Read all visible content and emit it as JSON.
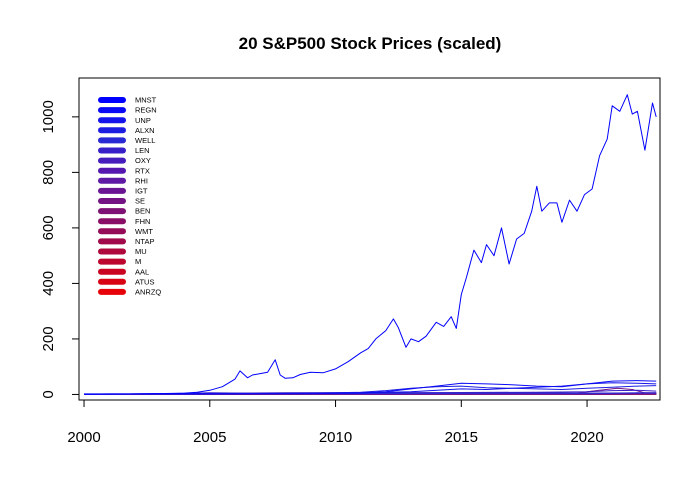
{
  "chart_data": {
    "type": "line",
    "title": "20 S&P500 Stock Prices (scaled)",
    "xlabel": "",
    "ylabel": "",
    "xlim": [
      1999.8,
      2022.9
    ],
    "ylim": [
      -20,
      1140
    ],
    "x_ticks": [
      2000,
      2005,
      2010,
      2015,
      2020
    ],
    "y_ticks": [
      0,
      200,
      400,
      600,
      800,
      1000
    ],
    "grid": false,
    "legend_position": "top-left",
    "series": [
      {
        "name": "MNST",
        "color": "#0000FF",
        "x": [
          2000,
          2001,
          2002,
          2003,
          2004,
          2004.5,
          2005,
          2005.5,
          2006,
          2006.2,
          2006.5,
          2006.7,
          2007,
          2007.3,
          2007.6,
          2007.8,
          2008,
          2008.3,
          2008.6,
          2009,
          2009.5,
          2010,
          2010.5,
          2011,
          2011.3,
          2011.6,
          2012,
          2012.3,
          2012.5,
          2012.8,
          2013,
          2013.3,
          2013.6,
          2014,
          2014.3,
          2014.6,
          2014.8,
          2015,
          2015.2,
          2015.5,
          2015.8,
          2016,
          2016.3,
          2016.6,
          2016.9,
          2017.2,
          2017.5,
          2017.8,
          2018,
          2018.2,
          2018.5,
          2018.8,
          2019,
          2019.3,
          2019.6,
          2019.9,
          2020.2,
          2020.5,
          2020.8,
          2021,
          2021.3,
          2021.6,
          2021.8,
          2022,
          2022.3,
          2022.6,
          2022.75
        ],
        "values": [
          1,
          2,
          2,
          3,
          5,
          8,
          15,
          28,
          55,
          85,
          60,
          70,
          75,
          80,
          125,
          70,
          58,
          60,
          72,
          80,
          78,
          92,
          118,
          150,
          165,
          200,
          230,
          272,
          240,
          170,
          200,
          190,
          210,
          260,
          245,
          280,
          238,
          360,
          420,
          520,
          475,
          540,
          500,
          600,
          470,
          560,
          580,
          660,
          750,
          660,
          690,
          690,
          620,
          700,
          660,
          720,
          740,
          860,
          920,
          1040,
          1020,
          1080,
          1010,
          1020,
          880,
          1050,
          1000
        ]
      },
      {
        "name": "REGN",
        "color": "#0A0AF5",
        "x": [
          2000,
          2003,
          2006,
          2009,
          2011,
          2012,
          2013,
          2014,
          2015,
          2016,
          2017,
          2018,
          2019,
          2020,
          2021,
          2022,
          2022.75
        ],
        "values": [
          2,
          2,
          2,
          3,
          5,
          10,
          20,
          30,
          40,
          38,
          35,
          30,
          28,
          38,
          48,
          50,
          48
        ]
      },
      {
        "name": "UNP",
        "color": "#1414EB",
        "x": [
          2000,
          2003,
          2006,
          2009,
          2011,
          2013,
          2015,
          2016,
          2017,
          2018,
          2019,
          2020,
          2021,
          2022,
          2022.75
        ],
        "values": [
          1,
          2,
          3,
          4,
          6,
          10,
          20,
          18,
          22,
          26,
          30,
          38,
          42,
          40,
          38
        ]
      },
      {
        "name": "ALXN",
        "color": "#1E1EE1",
        "x": [
          2000,
          2003,
          2006,
          2009,
          2011,
          2012,
          2013,
          2014,
          2015,
          2016,
          2017,
          2018,
          2019,
          2020,
          2021,
          2022,
          2022.75
        ],
        "values": [
          1,
          2,
          3,
          4,
          8,
          14,
          22,
          28,
          30,
          24,
          22,
          20,
          18,
          22,
          26,
          30,
          32
        ]
      },
      {
        "name": "WELL",
        "color": "#2A2AD5",
        "x": [
          2000,
          2004,
          2008,
          2012,
          2016,
          2019,
          2020,
          2021,
          2022,
          2022.75
        ],
        "values": [
          1,
          1,
          2,
          3,
          4,
          5,
          4,
          5,
          6,
          5
        ]
      },
      {
        "name": "LEN",
        "color": "#3820C8",
        "x": [
          2000,
          2003,
          2005,
          2007,
          2009,
          2012,
          2015,
          2018,
          2020,
          2021,
          2022,
          2022.75
        ],
        "values": [
          1,
          2,
          6,
          4,
          2,
          4,
          7,
          8,
          10,
          14,
          15,
          12
        ]
      },
      {
        "name": "OXY",
        "color": "#461EBC",
        "x": [
          2000,
          2004,
          2008,
          2012,
          2016,
          2020,
          2022,
          2022.75
        ],
        "values": [
          1,
          3,
          6,
          7,
          6,
          3,
          5,
          6
        ]
      },
      {
        "name": "RTX",
        "color": "#5418AE",
        "x": [
          2000,
          2004,
          2008,
          2012,
          2016,
          2020,
          2022.75
        ],
        "values": [
          1,
          2,
          3,
          4,
          5,
          5,
          6
        ]
      },
      {
        "name": "RHI",
        "color": "#5E1AA4",
        "x": [
          2000,
          2004,
          2008,
          2012,
          2016,
          2020,
          2022.75
        ],
        "values": [
          1,
          1,
          2,
          2,
          3,
          4,
          4
        ]
      },
      {
        "name": "IGT",
        "color": "#6A1694",
        "x": [
          2000,
          2004,
          2008,
          2012,
          2016,
          2020,
          2022.75
        ],
        "values": [
          1,
          3,
          2,
          1,
          1,
          1,
          2
        ]
      },
      {
        "name": "SE",
        "color": "#741484",
        "x": [
          2017.8,
          2018.5,
          2019.5,
          2020.5,
          2021.2,
          2021.8,
          2022.3,
          2022.75
        ],
        "values": [
          2,
          2,
          4,
          15,
          22,
          18,
          6,
          5
        ]
      },
      {
        "name": "BEN",
        "color": "#7E1274",
        "x": [
          2000,
          2004,
          2008,
          2012,
          2016,
          2020,
          2022.75
        ],
        "values": [
          1,
          2,
          3,
          4,
          3,
          2,
          2
        ]
      },
      {
        "name": "FHN",
        "color": "#880E66",
        "x": [
          2000,
          2004,
          2008,
          2012,
          2016,
          2020,
          2022.75
        ],
        "values": [
          1,
          1,
          1,
          1,
          1,
          1,
          1
        ]
      },
      {
        "name": "WMT",
        "color": "#940C58",
        "x": [
          2000,
          2004,
          2008,
          2012,
          2016,
          2020,
          2022.75
        ],
        "values": [
          1,
          1,
          1,
          1,
          2,
          2,
          2
        ]
      },
      {
        "name": "NTAP",
        "color": "#A0094A",
        "x": [
          2000,
          2004,
          2008,
          2012,
          2016,
          2020,
          2022.75
        ],
        "values": [
          1,
          1,
          1,
          1,
          1,
          1,
          2
        ]
      },
      {
        "name": "MU",
        "color": "#AE083C",
        "x": [
          2000,
          2004,
          2008,
          2012,
          2016,
          2020,
          2022.75
        ],
        "values": [
          1,
          1,
          1,
          1,
          1,
          2,
          2
        ]
      },
      {
        "name": "M",
        "color": "#BC062E",
        "x": [
          2000,
          2004,
          2008,
          2012,
          2016,
          2020,
          2022.75
        ],
        "values": [
          1,
          1,
          1,
          2,
          1,
          1,
          1
        ]
      },
      {
        "name": "AAL",
        "color": "#CA0420",
        "x": [
          2005.8,
          2008,
          2012,
          2014,
          2016,
          2020,
          2022.75
        ],
        "values": [
          1,
          1,
          1,
          2,
          2,
          1,
          1
        ]
      },
      {
        "name": "ATUS",
        "color": "#D80312",
        "x": [
          2017.5,
          2019,
          2020,
          2021,
          2022,
          2022.75
        ],
        "values": [
          1,
          1,
          1,
          1,
          1,
          1
        ]
      },
      {
        "name": "ANRZQ",
        "color": "#E60208",
        "x": [
          2011.5,
          2012.5,
          2013.5,
          2014.5,
          2015.5
        ],
        "values": [
          1,
          1,
          0.5,
          0.3,
          0.1
        ]
      }
    ]
  }
}
